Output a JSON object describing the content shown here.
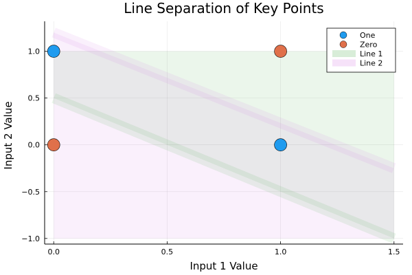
{
  "chart_data": {
    "type": "scatter",
    "title": "Line Separation of Key Points",
    "xlabel": "Input 1 Value",
    "ylabel": "Input 2 Value",
    "xlim": [
      -0.04,
      1.54
    ],
    "ylim": [
      -1.06,
      1.32
    ],
    "xticks": [
      {
        "value": 0.0,
        "label": "0.0"
      },
      {
        "value": 0.5,
        "label": "0.5"
      },
      {
        "value": 1.0,
        "label": "1.0"
      },
      {
        "value": 1.5,
        "label": "1.5"
      }
    ],
    "yticks": [
      {
        "value": -1.0,
        "label": "−1.0"
      },
      {
        "value": -0.5,
        "label": "−0.5"
      },
      {
        "value": 0.0,
        "label": "0.0"
      },
      {
        "value": 0.5,
        "label": "0.5"
      },
      {
        "value": 1.0,
        "label": "1.0"
      }
    ],
    "grid": true,
    "legend_position": "top-right",
    "series": [
      {
        "name": "One",
        "kind": "scatter",
        "color": "#1f9bef",
        "points": [
          [
            0,
            1
          ],
          [
            1,
            0
          ]
        ]
      },
      {
        "name": "Zero",
        "kind": "scatter",
        "color": "#e0704a",
        "points": [
          [
            0,
            0
          ],
          [
            1,
            1
          ]
        ]
      },
      {
        "name": "Line 1",
        "kind": "band-line",
        "color": "#3aa43a",
        "x": [
          0,
          1.5
        ],
        "y": [
          0.5,
          -1.0
        ],
        "fill_to": 1.0
      },
      {
        "name": "Line 2",
        "kind": "band-line",
        "color": "#d070e0",
        "x": [
          0,
          1.5
        ],
        "y": [
          1.2,
          -0.25
        ],
        "fill_to": -1.0
      }
    ]
  }
}
